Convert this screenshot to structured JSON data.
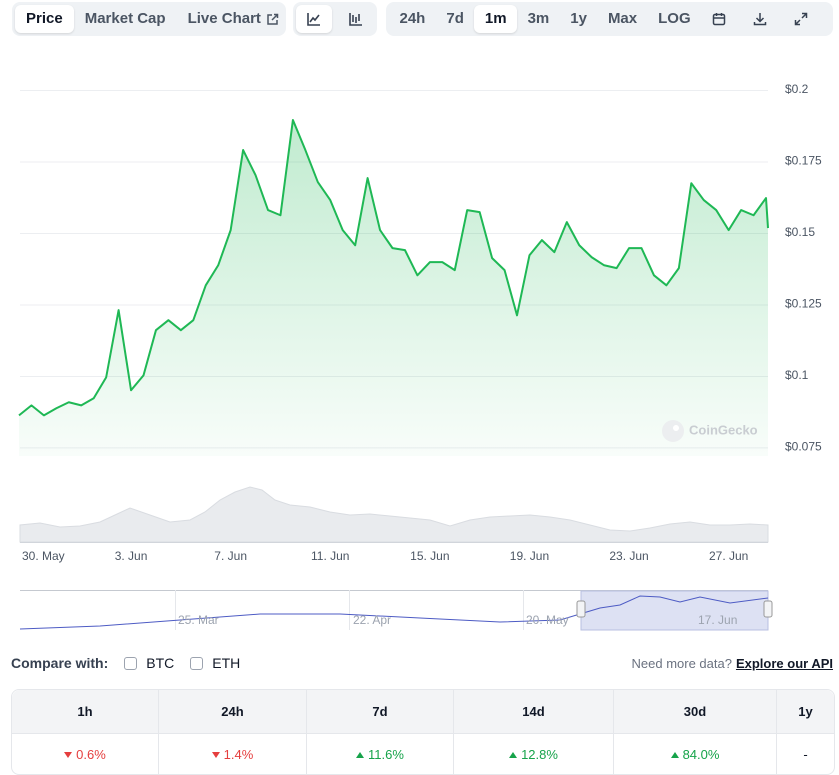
{
  "toolbar": {
    "tabs": [
      "Price",
      "Market Cap",
      "Live Chart"
    ],
    "active_tab": 0,
    "active_style": 0,
    "ranges": [
      "24h",
      "7d",
      "1m",
      "3m",
      "1y",
      "Max",
      "LOG"
    ],
    "active_range": 2
  },
  "chart_data": {
    "type": "line",
    "color": "#1fb855",
    "grid": true,
    "watermark": "CoinGecko",
    "x": [
      -0.5,
      0,
      0.5,
      1,
      1.5,
      2,
      2.5,
      3,
      3.5,
      4,
      4.5,
      5,
      5.5,
      6,
      6.5,
      7,
      7.5,
      8,
      8.5,
      9,
      9.5,
      10,
      10.5,
      11,
      11.5,
      12,
      12.5,
      13,
      13.5,
      14,
      14.5,
      15,
      15.5,
      16,
      16.5,
      17,
      17.5,
      18,
      18.5,
      19,
      19.5,
      20,
      20.5,
      21,
      21.5,
      22,
      22.5,
      23,
      23.5,
      24,
      24.5,
      25,
      25.5,
      26,
      26.5,
      27,
      27.5,
      28,
      28.5,
      29,
      29.5,
      29.58
    ],
    "values": [
      0.0862,
      0.0897,
      0.0862,
      0.0887,
      0.0908,
      0.0897,
      0.0922,
      0.0995,
      0.123,
      0.095,
      0.1002,
      0.116,
      0.1195,
      0.116,
      0.1195,
      0.1317,
      0.1387,
      0.151,
      0.179,
      0.1702,
      0.158,
      0.1562,
      0.1895,
      0.179,
      0.1678,
      0.1615,
      0.151,
      0.1457,
      0.1692,
      0.151,
      0.1447,
      0.144,
      0.1352,
      0.1398,
      0.1398,
      0.137,
      0.158,
      0.1573,
      0.1412,
      0.137,
      0.1212,
      0.1422,
      0.1475,
      0.1433,
      0.1538,
      0.1457,
      0.1415,
      0.1387,
      0.1377,
      0.1447,
      0.1447,
      0.1352,
      0.1317,
      0.1377,
      0.1674,
      0.1615,
      0.158,
      0.151,
      0.158,
      0.1562,
      0.1622,
      0.1517
    ],
    "xlim": [
      -0.46,
      29.58
    ],
    "xticks": [
      {
        "value": 0,
        "label": "30. May"
      },
      {
        "value": 4,
        "label": "3. Jun"
      },
      {
        "value": 8,
        "label": "7. Jun"
      },
      {
        "value": 12,
        "label": "11. Jun"
      },
      {
        "value": 16,
        "label": "15. Jun"
      },
      {
        "value": 20,
        "label": "19. Jun"
      },
      {
        "value": 24,
        "label": "23. Jun"
      },
      {
        "value": 28,
        "label": "27. Jun"
      }
    ],
    "ylim": [
      0.072,
      0.2
    ],
    "yticks": [
      {
        "value": 0.075,
        "label": "$0.075"
      },
      {
        "value": 0.1,
        "label": "$0.1"
      },
      {
        "value": 0.125,
        "label": "$0.125"
      },
      {
        "value": 0.15,
        "label": "$0.15"
      },
      {
        "value": 0.175,
        "label": "$0.175"
      },
      {
        "value": 0.2,
        "label": "$0.2"
      }
    ]
  },
  "navigator": {
    "labels": [
      "25. Mar",
      "22. Apr",
      "20. May",
      "17. Jun"
    ]
  },
  "compare": {
    "label": "Compare with:",
    "options": [
      "BTC",
      "ETH"
    ],
    "note": "Need more data?",
    "link": "Explore our API"
  },
  "changes": {
    "headers": [
      "1h",
      "24h",
      "7d",
      "14d",
      "30d",
      "1y"
    ],
    "values": [
      "0.6%",
      "1.4%",
      "11.6%",
      "12.8%",
      "84.0%",
      "-"
    ],
    "directions": [
      "down",
      "down",
      "up",
      "up",
      "up",
      null
    ]
  }
}
